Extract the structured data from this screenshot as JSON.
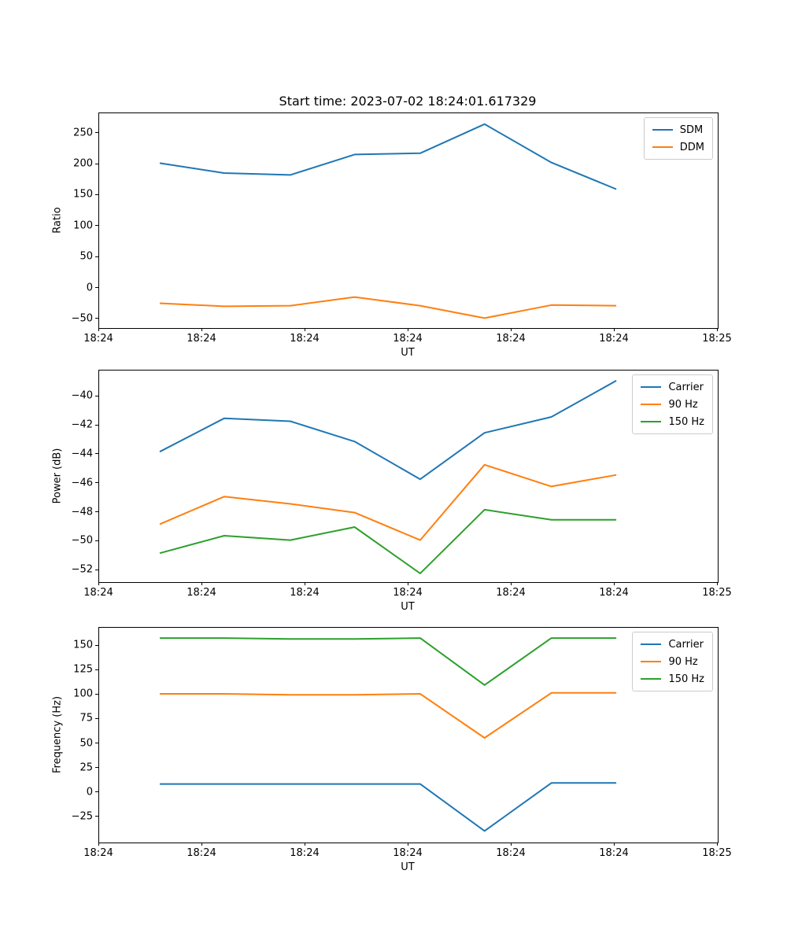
{
  "figure": {
    "title": "Start time: 2023-07-02 18:24:01.617329",
    "background": "#ffffff",
    "text_color": "#000000"
  },
  "x_axis": {
    "label": "UT",
    "ticklabels": [
      "18:24",
      "18:24",
      "18:24",
      "18:24",
      "18:24",
      "18:24",
      "18:25"
    ],
    "point_fracs": [
      0.098,
      0.202,
      0.309,
      0.413,
      0.519,
      0.623,
      0.731,
      0.836
    ]
  },
  "chart_data": [
    {
      "type": "line",
      "title": "",
      "ylabel": "Ratio",
      "xlabel": "UT",
      "ylim": [
        -64,
        282.5
      ],
      "yticks": [
        250,
        200,
        150,
        100,
        50,
        0,
        -50
      ],
      "xticklabels": [
        "18:24",
        "18:24",
        "18:24",
        "18:24",
        "18:24",
        "18:24",
        "18:25"
      ],
      "grid": false,
      "legend_position": "upper right",
      "series": [
        {
          "name": "SDM",
          "color": "#1f77b4",
          "values": [
            202,
            186,
            183,
            216,
            218,
            265,
            203,
            160
          ]
        },
        {
          "name": "DDM",
          "color": "#ff7f0e",
          "values": [
            -24,
            -29,
            -28,
            -14,
            -28,
            -48,
            -27,
            -28
          ]
        }
      ]
    },
    {
      "type": "line",
      "title": "",
      "ylabel": "Power (dB)",
      "xlabel": "UT",
      "ylim": [
        -52.8,
        -38.2
      ],
      "yticks": [
        -40,
        -42,
        -44,
        -46,
        -48,
        -50,
        -52
      ],
      "xticklabels": [
        "18:24",
        "18:24",
        "18:24",
        "18:24",
        "18:24",
        "18:24",
        "18:25"
      ],
      "grid": false,
      "legend_position": "upper right",
      "series": [
        {
          "name": "Carrier",
          "color": "#1f77b4",
          "values": [
            -43.8,
            -41.5,
            -41.7,
            -43.1,
            -45.7,
            -42.5,
            -41.4,
            -38.9
          ]
        },
        {
          "name": "90 Hz",
          "color": "#ff7f0e",
          "values": [
            -48.8,
            -46.9,
            -47.4,
            -48.0,
            -49.9,
            -44.7,
            -46.2,
            -45.4
          ]
        },
        {
          "name": "150 Hz",
          "color": "#2ca02c",
          "values": [
            -50.8,
            -49.6,
            -49.9,
            -49.0,
            -52.2,
            -47.8,
            -48.5,
            -48.5
          ]
        }
      ]
    },
    {
      "type": "line",
      "title": "",
      "ylabel": "Frequency (Hz)",
      "xlabel": "UT",
      "ylim": [
        -50.8,
        168.5
      ],
      "yticks": [
        150,
        125,
        100,
        75,
        50,
        25,
        0,
        -25
      ],
      "xticklabels": [
        "18:24",
        "18:24",
        "18:24",
        "18:24",
        "18:24",
        "18:24",
        "18:25"
      ],
      "grid": false,
      "legend_position": "upper right",
      "series": [
        {
          "name": "Carrier",
          "color": "#1f77b4",
          "values": [
            9,
            9,
            9,
            9,
            9,
            -39,
            10,
            10
          ]
        },
        {
          "name": "90 Hz",
          "color": "#ff7f0e",
          "values": [
            101,
            101,
            100,
            100,
            101,
            56,
            102,
            102
          ]
        },
        {
          "name": "150 Hz",
          "color": "#2ca02c",
          "values": [
            158,
            158,
            157,
            157,
            158,
            110,
            158,
            158
          ]
        }
      ]
    }
  ]
}
